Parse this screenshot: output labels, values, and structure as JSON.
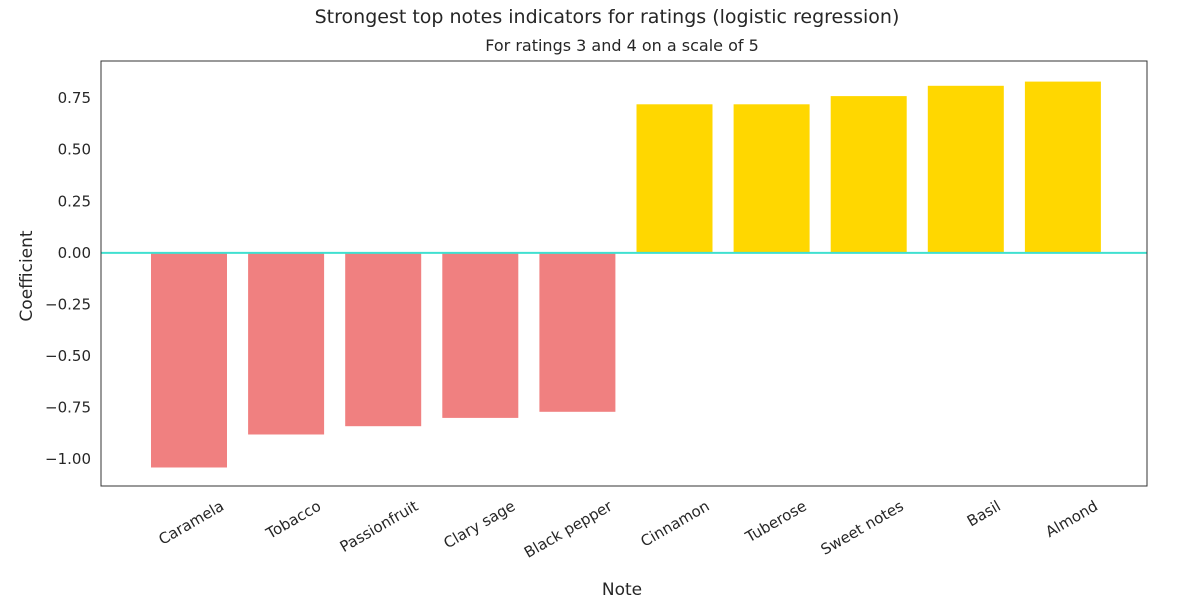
{
  "chart_data": {
    "type": "bar",
    "title": "Strongest top notes indicators for ratings (logistic regression)",
    "subtitle": "For ratings 3 and 4 on a scale of 5",
    "xlabel": "Note",
    "ylabel": "Coefficient",
    "categories": [
      "Caramela",
      "Tobacco",
      "Passionfruit",
      "Clary sage",
      "Black pepper",
      "Cinnamon",
      "Tuberose",
      "Sweet notes",
      "Basil",
      "Almond"
    ],
    "values": [
      -1.04,
      -0.88,
      -0.84,
      -0.8,
      -0.77,
      0.72,
      0.72,
      0.76,
      0.81,
      0.83
    ],
    "ylim": [
      -1.13,
      0.93
    ],
    "yticks": [
      -1.0,
      -0.75,
      -0.5,
      -0.25,
      0.0,
      0.25,
      0.5,
      0.75
    ],
    "ytick_labels": [
      "−1.00",
      "−0.75",
      "−0.50",
      "−0.25",
      "0.00",
      "0.25",
      "0.50",
      "0.75"
    ],
    "grid": false,
    "colors": {
      "negative": "#f08080",
      "positive": "#ffd700",
      "zero_line": "#40e0d0"
    }
  }
}
